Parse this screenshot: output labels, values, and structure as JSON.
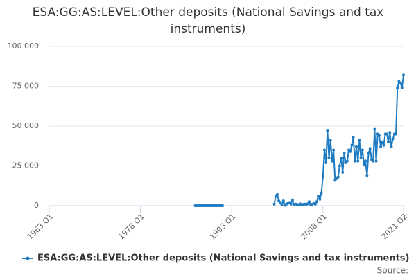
{
  "chart_data": {
    "type": "line",
    "title": "ESA:GG:AS:LEVEL:Other deposits (National Savings and tax instruments)",
    "source": "Source:",
    "x": [
      1987,
      1987.25,
      1987.5,
      1987.75,
      1988,
      1988.25,
      1988.5,
      1988.75,
      1989,
      1989.25,
      1989.5,
      1989.75,
      1990,
      1990.25,
      1990.5,
      1990.75,
      1991,
      1991.25,
      1991.5,
      1991.75,
      2000,
      2000.25,
      2000.5,
      2000.75,
      2001,
      2001.25,
      2001.5,
      2001.75,
      2002,
      2002.25,
      2002.5,
      2002.75,
      2003,
      2003.25,
      2003.5,
      2003.75,
      2004,
      2004.25,
      2004.5,
      2004.75,
      2005,
      2005.25,
      2005.5,
      2005.75,
      2006,
      2006.25,
      2006.5,
      2006.75,
      2007,
      2007.25,
      2007.5,
      2007.75,
      2008,
      2008.25,
      2008.5,
      2008.75,
      2009,
      2009.25,
      2009.5,
      2009.75,
      2010,
      2010.25,
      2010.5,
      2010.75,
      2011,
      2011.25,
      2011.5,
      2011.75,
      2012,
      2012.25,
      2012.5,
      2012.75,
      2013,
      2013.25,
      2013.5,
      2013.75,
      2014,
      2014.25,
      2014.5,
      2014.75,
      2015,
      2015.25,
      2015.5,
      2015.75,
      2016,
      2016.25,
      2016.5,
      2016.75,
      2017,
      2017.25,
      2017.5,
      2017.75,
      2018,
      2018.25,
      2018.5,
      2018.75,
      2019,
      2019.25,
      2019.5,
      2019.75,
      2020,
      2020.25,
      2020.5,
      2020.75,
      2021,
      2021.25
    ],
    "series": [
      {
        "name": "ESA:GG:AS:LEVEL:Other deposits (National Savings and tax instruments)",
        "color": "#1f7bc1",
        "values": [
          0,
          0,
          0,
          0,
          0,
          0,
          0,
          0,
          0,
          0,
          0,
          0,
          0,
          0,
          0,
          0,
          0,
          0,
          0,
          null,
          1000,
          6000,
          7000,
          3000,
          2000,
          500,
          3000,
          200,
          1000,
          1500,
          2000,
          1000,
          3500,
          500,
          1000,
          800,
          500,
          1200,
          600,
          800,
          1000,
          700,
          1200,
          2500,
          600,
          800,
          1500,
          1000,
          2500,
          6000,
          4000,
          8000,
          18000,
          35000,
          27000,
          47000,
          30000,
          41000,
          28000,
          35000,
          16000,
          17000,
          18000,
          25000,
          30000,
          21000,
          33000,
          27000,
          28000,
          35000,
          34000,
          38000,
          43000,
          28000,
          37000,
          28000,
          41000,
          30000,
          35000,
          26000,
          28000,
          19000,
          33000,
          36000,
          29000,
          28000,
          48000,
          28000,
          45000,
          44000,
          37000,
          40000,
          38000,
          45000,
          45000,
          40000,
          46000,
          37000,
          42000,
          45000,
          45000,
          74000,
          78000,
          77000,
          74000,
          82000
        ]
      }
    ],
    "xlim": [
      1963,
      2021.25
    ],
    "xticks": [
      {
        "value": 1963,
        "label": "1963 Q1"
      },
      {
        "value": 1978,
        "label": "1978 Q1"
      },
      {
        "value": 1993,
        "label": "1993 Q1"
      },
      {
        "value": 2008,
        "label": "2008 Q1"
      },
      {
        "value": 2021.25,
        "label": "2021 Q2"
      }
    ],
    "ylim": [
      0,
      100000
    ],
    "yticks": [
      0,
      {
        "value": 25000,
        "label": "25 000"
      },
      {
        "value": 50000,
        "label": "50 000"
      },
      {
        "value": 75000,
        "label": "75 000"
      },
      {
        "value": 100000,
        "label": "100 000"
      }
    ],
    "grid": true
  }
}
